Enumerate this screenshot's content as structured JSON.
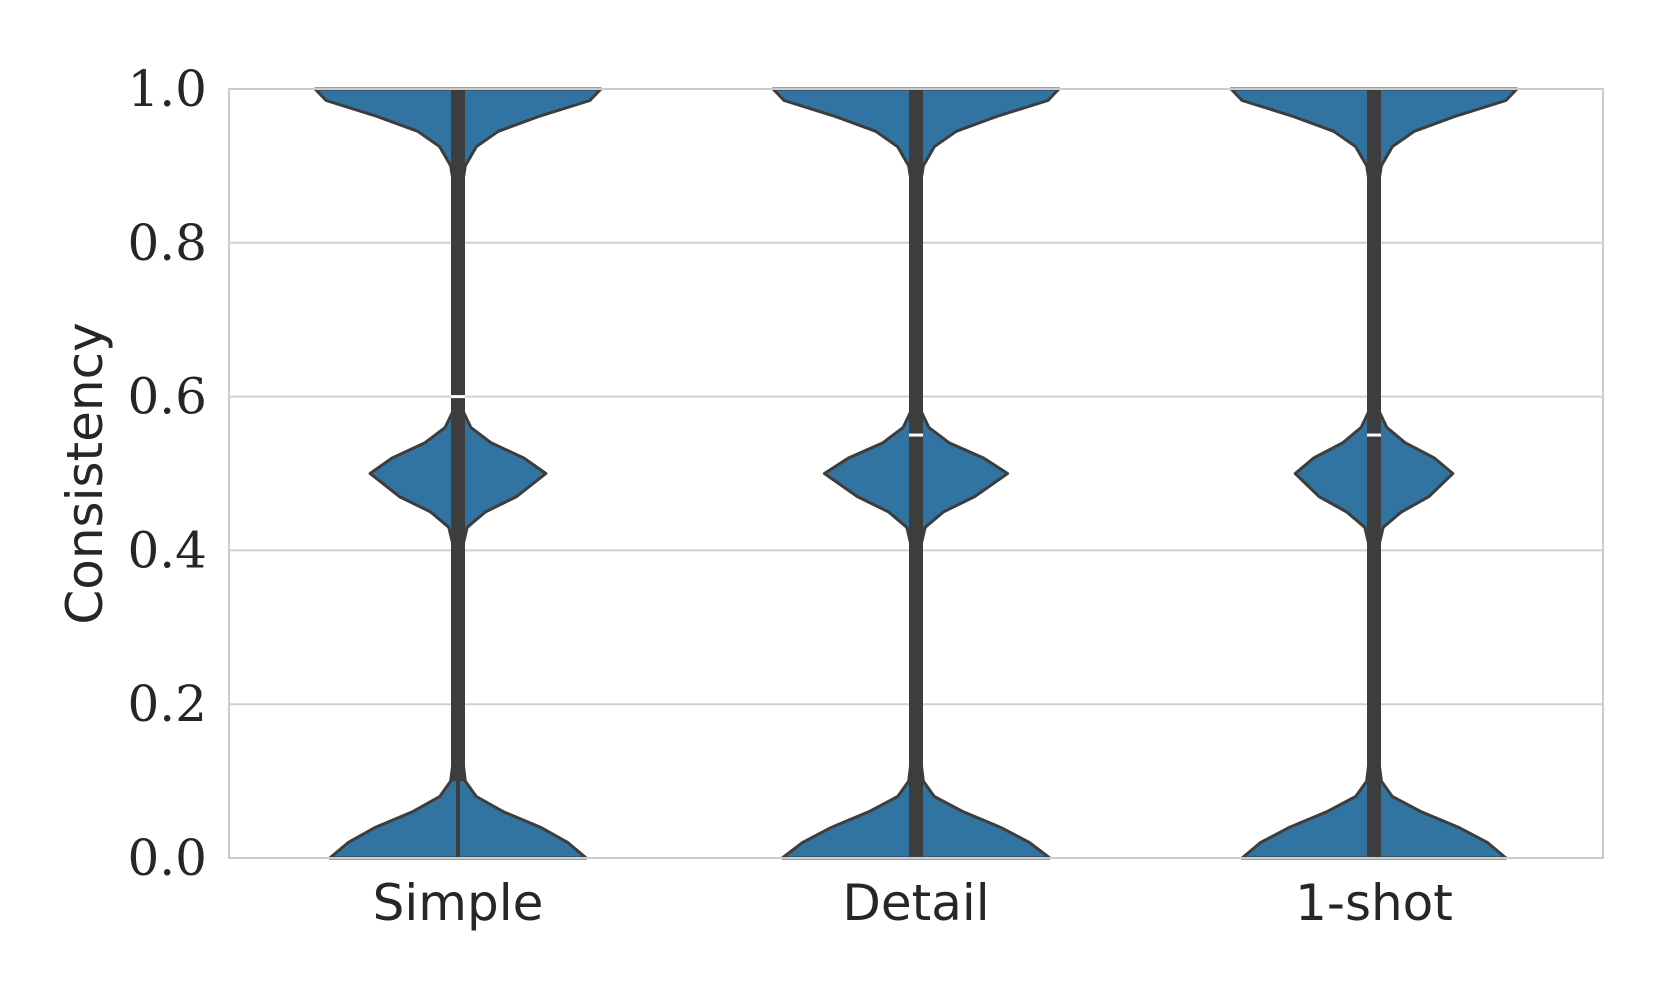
{
  "chart_data": {
    "type": "violin",
    "title": "",
    "xlabel": "",
    "ylabel": "Consistency",
    "ylim": [
      0.0,
      1.0
    ],
    "yticks": [
      {
        "value": 0.0,
        "label": "0.0"
      },
      {
        "value": 0.2,
        "label": "0.2"
      },
      {
        "value": 0.4,
        "label": "0.4"
      },
      {
        "value": 0.6,
        "label": "0.6"
      },
      {
        "value": 0.8,
        "label": "0.8"
      },
      {
        "value": 1.0,
        "label": "1.0"
      }
    ],
    "grid": "horizontal",
    "colors": {
      "violin_fill": "#3274a1",
      "violin_edge": "#3d3d3d",
      "box": "#3d3d3d",
      "median": "#ffffff",
      "grid": "#d0d0d0",
      "frame": "#cccccc"
    },
    "categories": [
      "Simple",
      "Detail",
      "1-shot"
    ],
    "series": [
      {
        "name": "Simple",
        "median": 0.6,
        "q1": 0.1,
        "q3": 1.0,
        "profile": [
          [
            0.0,
            0.7
          ],
          [
            0.02,
            0.6
          ],
          [
            0.04,
            0.45
          ],
          [
            0.06,
            0.25
          ],
          [
            0.08,
            0.1
          ],
          [
            0.1,
            0.04
          ],
          [
            0.15,
            0.015
          ],
          [
            0.25,
            0.012
          ],
          [
            0.35,
            0.012
          ],
          [
            0.4,
            0.02
          ],
          [
            0.43,
            0.05
          ],
          [
            0.45,
            0.15
          ],
          [
            0.47,
            0.32
          ],
          [
            0.5,
            0.48
          ],
          [
            0.52,
            0.36
          ],
          [
            0.54,
            0.18
          ],
          [
            0.56,
            0.07
          ],
          [
            0.58,
            0.03
          ],
          [
            0.6,
            0.015
          ],
          [
            0.7,
            0.012
          ],
          [
            0.8,
            0.012
          ],
          [
            0.87,
            0.02
          ],
          [
            0.9,
            0.04
          ],
          [
            0.925,
            0.1
          ],
          [
            0.945,
            0.22
          ],
          [
            0.965,
            0.45
          ],
          [
            0.985,
            0.72
          ],
          [
            1.0,
            0.78
          ]
        ]
      },
      {
        "name": "Detail",
        "median": 0.55,
        "q1": 0.0,
        "q3": 1.0,
        "profile": [
          [
            0.0,
            0.73
          ],
          [
            0.02,
            0.62
          ],
          [
            0.04,
            0.46
          ],
          [
            0.06,
            0.26
          ],
          [
            0.08,
            0.1
          ],
          [
            0.1,
            0.04
          ],
          [
            0.15,
            0.015
          ],
          [
            0.25,
            0.012
          ],
          [
            0.35,
            0.012
          ],
          [
            0.4,
            0.02
          ],
          [
            0.43,
            0.05
          ],
          [
            0.45,
            0.15
          ],
          [
            0.47,
            0.32
          ],
          [
            0.5,
            0.5
          ],
          [
            0.52,
            0.37
          ],
          [
            0.54,
            0.18
          ],
          [
            0.56,
            0.07
          ],
          [
            0.58,
            0.03
          ],
          [
            0.6,
            0.015
          ],
          [
            0.7,
            0.012
          ],
          [
            0.8,
            0.012
          ],
          [
            0.87,
            0.02
          ],
          [
            0.9,
            0.04
          ],
          [
            0.925,
            0.1
          ],
          [
            0.945,
            0.22
          ],
          [
            0.965,
            0.45
          ],
          [
            0.985,
            0.72
          ],
          [
            1.0,
            0.78
          ]
        ]
      },
      {
        "name": "1-shot",
        "median": 0.55,
        "q1": 0.0,
        "q3": 1.0,
        "profile": [
          [
            0.0,
            0.72
          ],
          [
            0.02,
            0.62
          ],
          [
            0.04,
            0.46
          ],
          [
            0.06,
            0.26
          ],
          [
            0.08,
            0.1
          ],
          [
            0.1,
            0.04
          ],
          [
            0.15,
            0.015
          ],
          [
            0.25,
            0.012
          ],
          [
            0.35,
            0.012
          ],
          [
            0.4,
            0.02
          ],
          [
            0.43,
            0.05
          ],
          [
            0.45,
            0.15
          ],
          [
            0.47,
            0.3
          ],
          [
            0.5,
            0.43
          ],
          [
            0.52,
            0.33
          ],
          [
            0.54,
            0.17
          ],
          [
            0.56,
            0.07
          ],
          [
            0.58,
            0.03
          ],
          [
            0.6,
            0.015
          ],
          [
            0.7,
            0.012
          ],
          [
            0.8,
            0.012
          ],
          [
            0.87,
            0.02
          ],
          [
            0.9,
            0.04
          ],
          [
            0.925,
            0.1
          ],
          [
            0.945,
            0.22
          ],
          [
            0.965,
            0.45
          ],
          [
            0.985,
            0.72
          ],
          [
            1.0,
            0.78
          ]
        ]
      }
    ]
  }
}
